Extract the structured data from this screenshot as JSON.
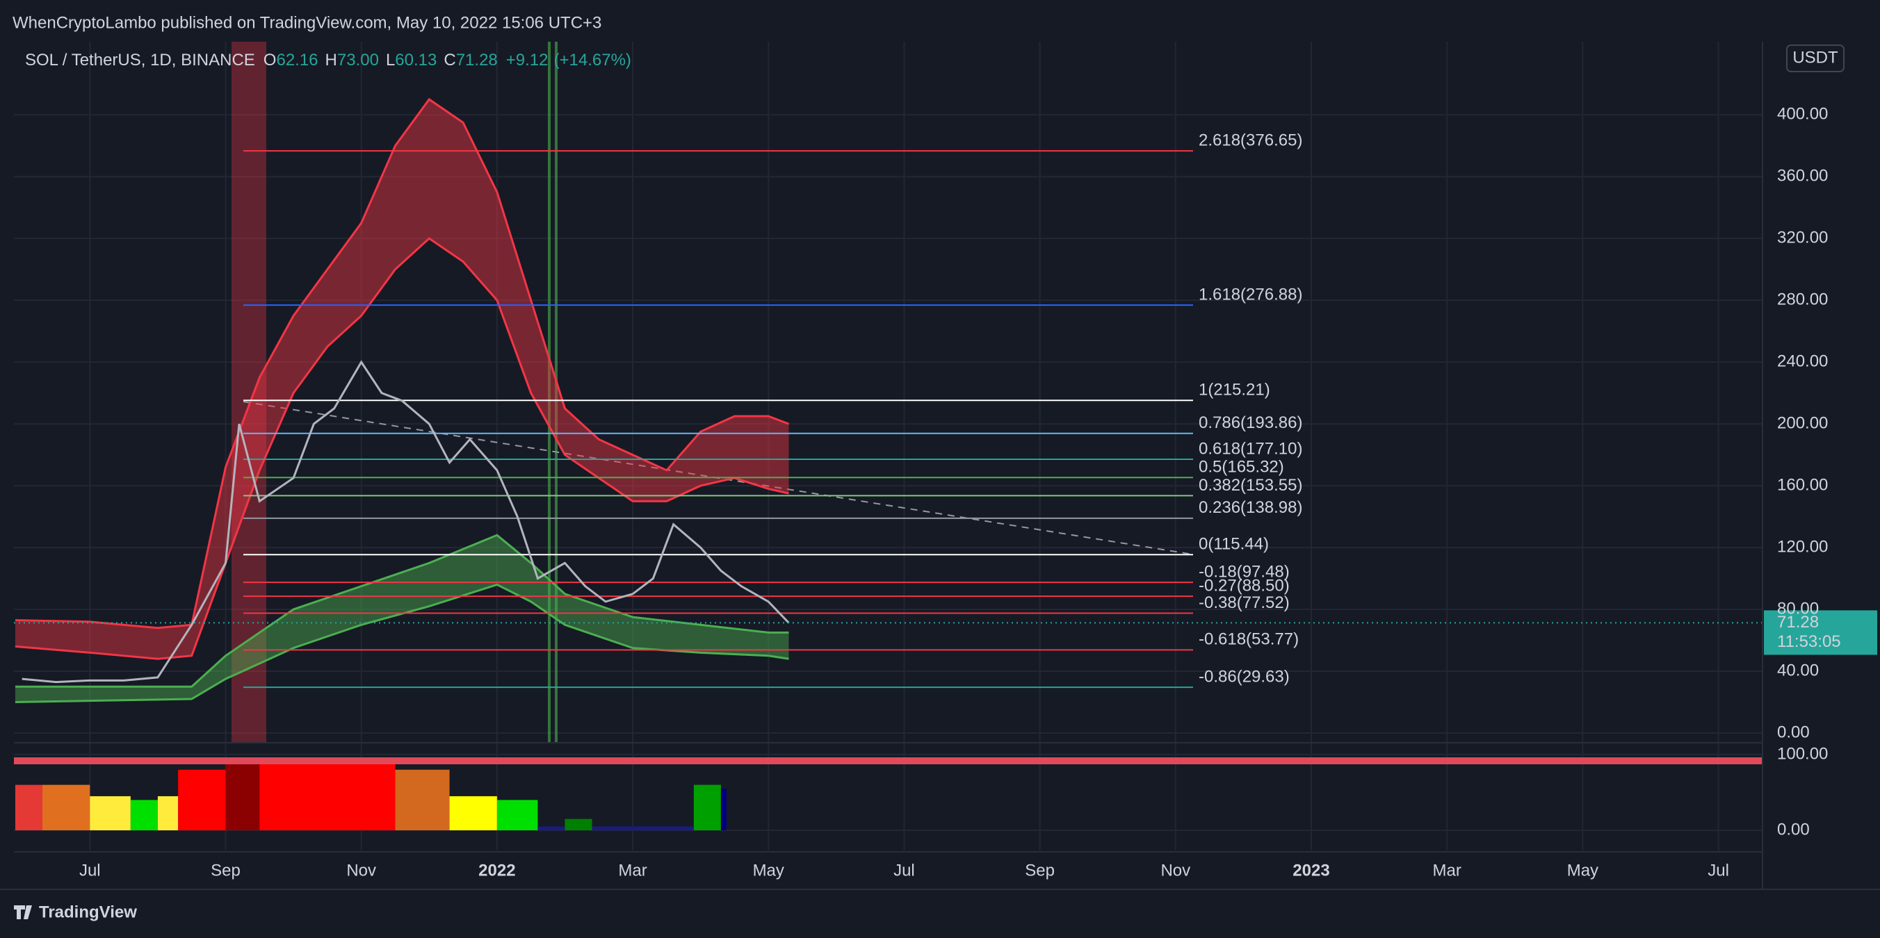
{
  "header": {
    "publisher": "WhenCryptoLambo published on TradingView.com, May 10, 2022 15:06 UTC+3"
  },
  "footer": {
    "brand": "TradingView"
  },
  "chart_data": [
    {
      "type": "line",
      "symbol": "SOL / TetherUS, 1D, BINANCE",
      "ohlc": [
        {
          "key": "O",
          "text": "62.16"
        },
        {
          "key": "H",
          "text": "73.00"
        },
        {
          "key": "L",
          "text": "60.13"
        },
        {
          "key": "C",
          "text": "71.28"
        }
      ],
      "change": {
        "value": 9.12,
        "label": "+9.12"
      },
      "change_percent": {
        "value": 14.67,
        "label": "(+14.67%)"
      },
      "currency": "USDT",
      "last_price": 71.28,
      "countdown": "11:53:05",
      "color": "#b2b5be",
      "x": [
        -1,
        -0.5,
        0,
        0.5,
        1,
        1.5,
        2,
        2.2,
        2.5,
        3,
        3.3,
        3.6,
        4,
        4.3,
        4.6,
        5,
        5.3,
        5.6,
        6,
        6.3,
        6.6,
        7,
        7.3,
        7.6,
        8,
        8.3,
        8.6,
        9,
        9.3,
        9.6,
        10,
        10.3
      ],
      "values": [
        35,
        33,
        34,
        34,
        36,
        70,
        110,
        200,
        150,
        165,
        200,
        210,
        240,
        220,
        215,
        200,
        175,
        190,
        170,
        140,
        100,
        110,
        95,
        85,
        90,
        100,
        135,
        120,
        105,
        95,
        85,
        71.28
      ],
      "bands": [
        {
          "color": "#f23645",
          "x": [
            -1.1,
            0,
            1,
            1.5,
            2,
            2.5,
            3,
            3.5,
            4,
            4.5,
            5,
            5.5,
            6,
            6.5,
            7,
            7.5,
            8,
            8.5,
            9,
            9.5,
            10,
            10.3
          ],
          "upper": [
            73,
            72,
            68,
            70,
            172,
            230,
            270,
            300,
            330,
            380,
            410,
            395,
            350,
            280,
            210,
            190,
            180,
            170,
            195,
            205,
            205,
            200
          ],
          "lower": [
            56,
            52,
            48,
            50,
            110,
            170,
            220,
            250,
            270,
            300,
            320,
            305,
            280,
            220,
            180,
            165,
            150,
            150,
            160,
            165,
            158,
            155
          ]
        },
        {
          "color": "#4caf50",
          "x": [
            -1.1,
            1.5,
            2,
            3,
            4,
            5,
            6,
            6.5,
            7,
            8,
            9,
            10,
            10.3
          ],
          "upper": [
            30,
            30,
            50,
            80,
            95,
            110,
            128,
            110,
            90,
            75,
            70,
            65,
            65
          ],
          "lower": [
            20,
            22,
            35,
            55,
            70,
            82,
            96,
            85,
            70,
            55,
            52,
            50,
            48
          ]
        }
      ],
      "fib_levels": [
        {
          "value": 376.65,
          "label": "2.618(376.65)",
          "color": "#f23645"
        },
        {
          "value": 276.88,
          "label": "1.618(276.88)",
          "color": "#2962ff"
        },
        {
          "value": 215.21,
          "label": "1(215.21)",
          "color": "#ffffff"
        },
        {
          "value": 193.86,
          "label": "0.786(193.86)",
          "color": "#64b5f6"
        },
        {
          "value": 177.1,
          "label": "0.618(177.10)",
          "color": "#26a69a"
        },
        {
          "value": 165.32,
          "label": "0.5(165.32)",
          "color": "#4caf50"
        },
        {
          "value": 153.55,
          "label": "0.382(153.55)",
          "color": "#81c784"
        },
        {
          "value": 138.98,
          "label": "0.236(138.98)",
          "color": "#9598a1"
        },
        {
          "value": 115.44,
          "label": "0(115.44)",
          "color": "#ffffff"
        },
        {
          "value": 97.48,
          "label": "-0.18(97.48)",
          "color": "#f23645"
        },
        {
          "value": 88.5,
          "label": "-0.27(88.50)",
          "color": "#f23645"
        },
        {
          "value": 77.52,
          "label": "-0.38(77.52)",
          "color": "#f23645"
        },
        {
          "value": 53.77,
          "label": "-0.618(53.77)",
          "color": "#f23645"
        },
        {
          "value": 29.63,
          "label": "-0.86(29.63)",
          "color": "#26a69a"
        }
      ],
      "xlim": [
        -1.12,
        24.65
      ],
      "xticks": [
        {
          "value": 0,
          "label": "Jul"
        },
        {
          "value": 2,
          "label": "Sep"
        },
        {
          "value": 4,
          "label": "Nov"
        },
        {
          "value": 6,
          "label": "2022"
        },
        {
          "value": 8,
          "label": "Mar"
        },
        {
          "value": 10,
          "label": "May"
        },
        {
          "value": 12,
          "label": "Jul"
        },
        {
          "value": 14,
          "label": "Sep"
        },
        {
          "value": 16,
          "label": "Nov"
        },
        {
          "value": 18,
          "label": "2023"
        },
        {
          "value": 20,
          "label": "Mar"
        },
        {
          "value": 22,
          "label": "May"
        },
        {
          "value": 24,
          "label": "Jul"
        }
      ],
      "ylim": [
        -6.3,
        447.3
      ],
      "yticks": [
        {
          "value": 0,
          "label": "0.00"
        },
        {
          "value": 40,
          "label": "40.00"
        },
        {
          "value": 80,
          "label": "80.00"
        },
        {
          "value": 120,
          "label": "120.00"
        },
        {
          "value": 160,
          "label": "160.00"
        },
        {
          "value": 200,
          "label": "200.00"
        },
        {
          "value": 240,
          "label": "240.00"
        },
        {
          "value": 280,
          "label": "280.00"
        },
        {
          "value": 320,
          "label": "320.00"
        },
        {
          "value": 360,
          "label": "360.00"
        },
        {
          "value": 400,
          "label": "400.00"
        }
      ],
      "grid": true
    },
    {
      "type": "column",
      "x": [
        -1.1,
        -0.7,
        0,
        0.6,
        1,
        1.3,
        2,
        2.5,
        4.5,
        5.3,
        6,
        6.6,
        7,
        7.4,
        8.9,
        9.3
      ],
      "values": [
        60,
        60,
        45,
        40,
        45,
        80,
        90,
        90,
        80,
        45,
        40,
        5,
        15,
        5,
        60,
        55
      ],
      "colors": [
        "#e53935",
        "#e07020",
        "#ffeb3b",
        "#00e000",
        "#ffeb3b",
        "#ff0000",
        "#8b0000",
        "#ff0000",
        "#d2691e",
        "#ffff00",
        "#00e000",
        "#1a1a80",
        "#008000",
        "#1a1a80",
        "#00a000",
        "#000080"
      ],
      "xlim": [
        -1.12,
        24.65
      ],
      "ylim": [
        -26.6,
        111.9
      ],
      "yticks": [
        {
          "value": 100,
          "label": "100.00"
        },
        {
          "value": 0,
          "label": "0.00"
        }
      ],
      "grid": true
    }
  ]
}
